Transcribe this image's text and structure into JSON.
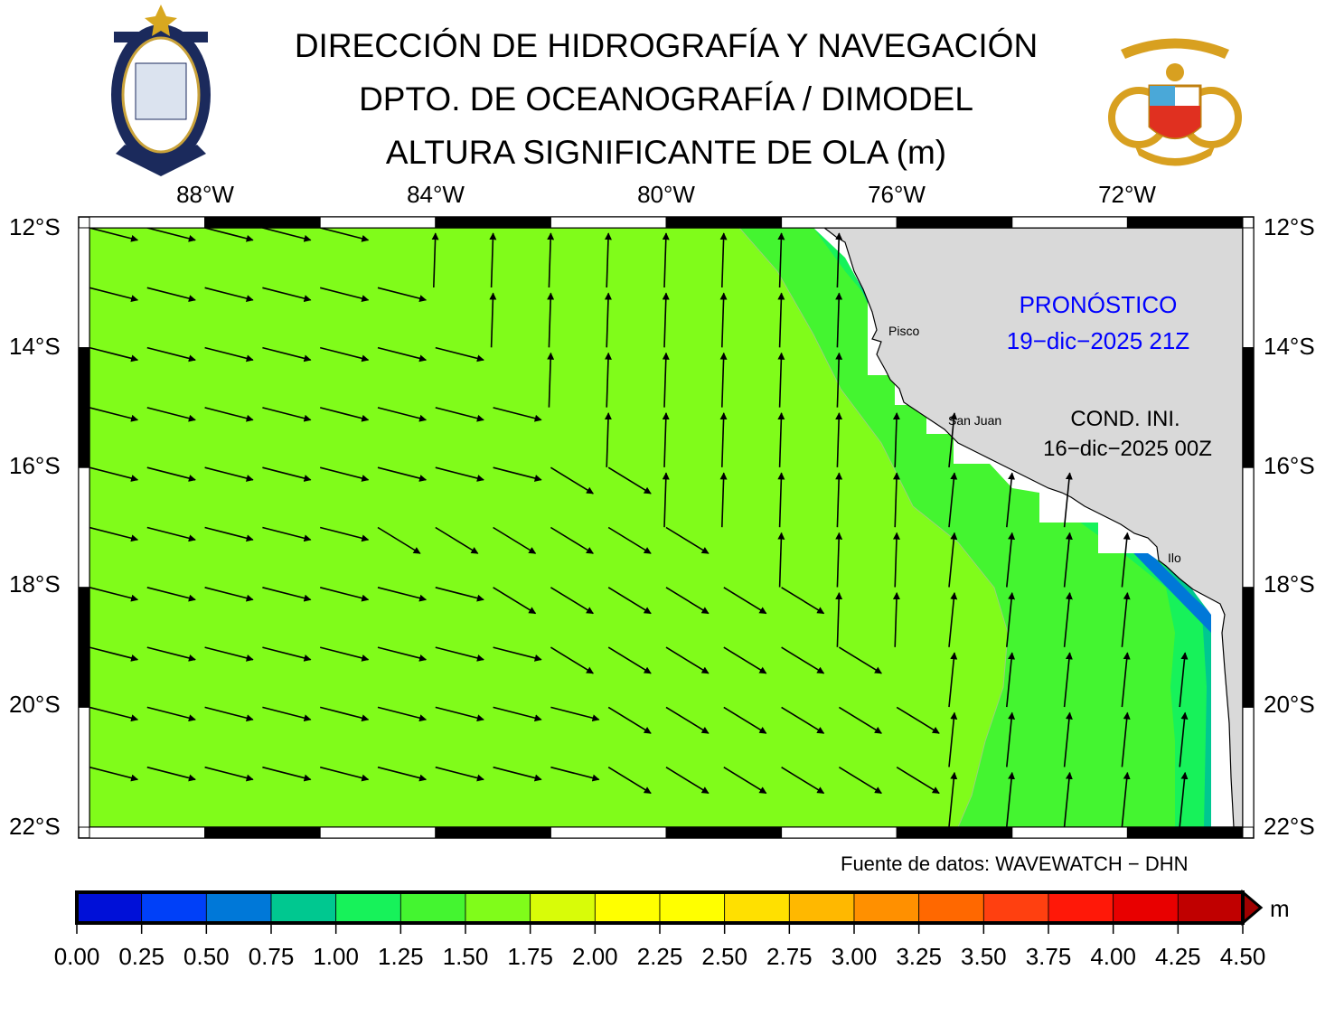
{
  "header": {
    "line1": "DIRECCIÓN DE HIDROGRAFÍA Y NAVEGACIÓN",
    "line2": "DPTO. DE OCEANOGRAFÍA / DIMODEL",
    "line3": "ALTURA SIGNIFICANTE DE OLA (m)"
  },
  "logos": {
    "left": "DIRECCIÓN DE HIDROGRAFÍA Y NAVEGACIÓN - MARINA DE GUERRA DEL PERÚ",
    "right": "MARINA DE GUERRA DEL PERÚ"
  },
  "map": {
    "lon_labels": [
      "88°W",
      "84°W",
      "80°W",
      "76°W",
      "72°W"
    ],
    "lat_labels": [
      "12°S",
      "14°S",
      "16°S",
      "18°S",
      "20°S",
      "22°S"
    ],
    "lon_range": [
      -90,
      -70
    ],
    "lat_range": [
      -22,
      -12
    ],
    "places": [
      "Pisco",
      "San Juan",
      "Ilo"
    ],
    "forecast_label": "PRONÓSTICO",
    "forecast_time": "19−dic−2025 21Z",
    "init_label": "COND. INI.",
    "init_time": "16−dic−2025 00Z",
    "colors": {
      "land": "#d9d9d9",
      "ocean_main": "#80fc1a",
      "band_125": "#44f530",
      "band_100": "#17f25a",
      "band_075": "#00c890",
      "band_050": "#0078d8"
    }
  },
  "source": "Fuente de datos: WAVEWATCH − DHN",
  "colorbar": {
    "unit": "m",
    "ticks": [
      "0.00",
      "0.25",
      "0.50",
      "0.75",
      "1.00",
      "1.25",
      "1.50",
      "1.75",
      "2.00",
      "2.25",
      "2.50",
      "2.75",
      "3.00",
      "3.25",
      "3.50",
      "3.75",
      "4.00",
      "4.25",
      "4.50"
    ],
    "colors": [
      "#0010d8",
      "#0040f8",
      "#0078d8",
      "#00c890",
      "#17f25a",
      "#44f530",
      "#80fc1a",
      "#d8fc08",
      "#ffff00",
      "#ffff00",
      "#ffe000",
      "#ffb800",
      "#ff9000",
      "#ff6800",
      "#ff4010",
      "#ff1808",
      "#e80000",
      "#c00000"
    ],
    "extend_color": "#a00000"
  }
}
